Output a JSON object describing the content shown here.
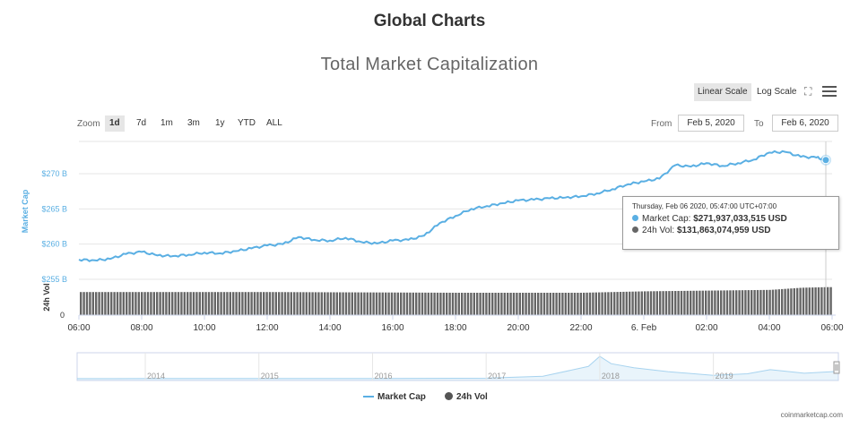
{
  "page": {
    "title": "Global Charts"
  },
  "toolbar": {
    "linear_label": "Linear Scale",
    "log_label": "Log Scale",
    "zoom_label": "Zoom",
    "zoom_buttons": [
      "1d",
      "7d",
      "1m",
      "3m",
      "1y",
      "YTD",
      "ALL"
    ],
    "active_zoom": "1d",
    "from_label": "From",
    "from_value": "Feb 5, 2020",
    "to_label": "To",
    "to_value": "Feb 6, 2020"
  },
  "tooltip": {
    "date": "Thursday, Feb 06 2020, 05:47:00 UTC+07:00",
    "market_cap_label": "Market Cap:",
    "market_cap_value": "$271,937,033,515 USD",
    "volume_label": "24h Vol:",
    "volume_value": "$131,863,074,959 USD"
  },
  "legend": {
    "market_cap": "Market Cap",
    "volume": "24h Vol"
  },
  "credit": "coinmarketcap.com",
  "colors": {
    "market_cap": "#5aafe3",
    "volume": "#666666",
    "navigator": "#a7d3ef"
  },
  "chart_data": {
    "type": "line",
    "title": "Total Market Capitalization",
    "ylabel": "Market Cap",
    "volume_label": "24h Vol",
    "y_unit": "B",
    "y_ticks": [
      255,
      260,
      265,
      270
    ],
    "y_tick_labels": [
      "$255 B",
      "$260 B",
      "$265 B",
      "$270 B"
    ],
    "ylim": [
      255,
      275
    ],
    "volume_axis_labels": [
      "0"
    ],
    "x_ticks": [
      "06:00",
      "08:00",
      "10:00",
      "12:00",
      "14:00",
      "16:00",
      "18:00",
      "20:00",
      "22:00",
      "6. Feb",
      "02:00",
      "04:00",
      "06:00"
    ],
    "series": [
      {
        "name": "Market Cap",
        "x_hours": [
          0,
          0.5,
          1,
          1.5,
          2,
          2.5,
          3,
          3.5,
          4,
          4.5,
          5,
          5.5,
          6,
          6.5,
          7,
          7.5,
          8,
          8.5,
          9,
          9.5,
          10,
          10.5,
          11,
          11.5,
          12,
          12.5,
          13,
          13.5,
          14,
          14.5,
          15,
          15.5,
          16,
          16.5,
          17,
          17.5,
          18,
          18.5,
          19,
          19.5,
          20,
          20.5,
          21,
          21.5,
          22,
          22.5,
          23,
          23.5,
          23.8
        ],
        "values": [
          257.8,
          257.7,
          257.9,
          258.6,
          258.9,
          258.4,
          258.3,
          258.5,
          258.8,
          258.7,
          259.0,
          259.4,
          259.8,
          260.0,
          261.0,
          260.6,
          260.5,
          260.9,
          260.3,
          260.1,
          260.5,
          260.6,
          261.2,
          263.0,
          264.0,
          265.0,
          265.4,
          265.8,
          266.2,
          266.3,
          266.5,
          266.6,
          266.8,
          267.2,
          267.8,
          268.5,
          268.9,
          269.3,
          271.2,
          271.0,
          271.5,
          271.1,
          271.5,
          272.0,
          273.0,
          273.1,
          272.4,
          272.3,
          271.94
        ]
      },
      {
        "name": "24h Vol",
        "x_hours": [
          0,
          6,
          12,
          16,
          18,
          20,
          22,
          23,
          23.8
        ],
        "values_billion": [
          125,
          125,
          124,
          124,
          126,
          127,
          128,
          131,
          131.86
        ]
      }
    ],
    "navigator": {
      "x_labels": [
        "2014",
        "2015",
        "2016",
        "2017",
        "2018",
        "2019"
      ],
      "x_years": [
        2013.4,
        2014,
        2015,
        2016,
        2017,
        2017.5,
        2017.9,
        2018.0,
        2018.1,
        2018.3,
        2018.6,
        2019.0,
        2019.3,
        2019.5,
        2019.8,
        2020.1
      ],
      "values_billion": [
        2,
        8,
        6,
        10,
        20,
        90,
        450,
        820,
        550,
        400,
        260,
        120,
        180,
        330,
        200,
        270
      ]
    }
  }
}
